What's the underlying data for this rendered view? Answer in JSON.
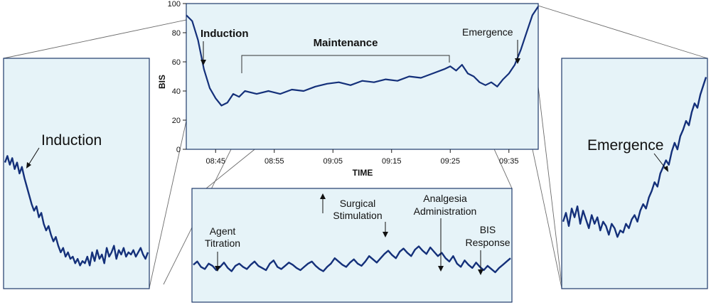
{
  "colors": {
    "panel_fill": "#e6f3f8",
    "panel_border": "#1f3a6b",
    "trace": "#14307a",
    "connector": "#6b6b6b",
    "axis": "#1a1a1a"
  },
  "chart_data": [
    {
      "id": "main",
      "type": "line",
      "ylabel": "BIS",
      "xlabel": "TIME",
      "ylim": [
        0,
        100
      ],
      "xlim": [
        "08:40",
        "09:40"
      ],
      "yticks": [
        "0",
        "20",
        "40",
        "60",
        "80",
        "100"
      ],
      "xticks": [
        "08:45",
        "08:55",
        "09:05",
        "09:15",
        "09:25",
        "09:35"
      ],
      "series": [
        {
          "x": [
            "08:40",
            "08:41",
            "08:42",
            "08:43",
            "08:44",
            "08:45",
            "08:46",
            "08:47",
            "08:48",
            "08:49",
            "08:50",
            "08:52",
            "08:54",
            "08:56",
            "08:58",
            "09:00",
            "09:02",
            "09:04",
            "09:06",
            "09:08",
            "09:10",
            "09:12",
            "09:14",
            "09:16",
            "09:18",
            "09:20",
            "09:22",
            "09:24",
            "09:25",
            "09:26",
            "09:27",
            "09:28",
            "09:29",
            "09:30",
            "09:31",
            "09:32",
            "09:33",
            "09:34",
            "09:35",
            "09:36",
            "09:37",
            "09:38",
            "09:39",
            "09:40"
          ],
          "values": [
            92,
            88,
            75,
            55,
            42,
            35,
            30,
            32,
            38,
            36,
            40,
            38,
            40,
            38,
            41,
            40,
            43,
            45,
            46,
            44,
            47,
            46,
            48,
            47,
            50,
            49,
            52,
            55,
            57,
            54,
            58,
            52,
            50,
            46,
            44,
            46,
            43,
            48,
            52,
            58,
            68,
            80,
            92,
            98
          ]
        }
      ],
      "annotations": [
        {
          "text": "Induction"
        },
        {
          "text": "Maintenance"
        },
        {
          "text": "Emergence"
        }
      ]
    },
    {
      "id": "induction-zoom",
      "type": "line",
      "series": [
        {
          "values": [
            55,
            58,
            54,
            57,
            52,
            55,
            50,
            53,
            48,
            44,
            40,
            36,
            33,
            35,
            30,
            32,
            27,
            24,
            26,
            22,
            19,
            21,
            17,
            14,
            16,
            12,
            14,
            11,
            12,
            9,
            11,
            8,
            10,
            9,
            12,
            8,
            14,
            10,
            15,
            11,
            13,
            9,
            16,
            12,
            14,
            17,
            11,
            15,
            13,
            16,
            12,
            14,
            13,
            15,
            12,
            14,
            16,
            13,
            11,
            14
          ]
        }
      ],
      "annotations": [
        {
          "text": "Induction"
        }
      ]
    },
    {
      "id": "maintenance-zoom",
      "type": "line",
      "series": [
        {
          "values": [
            32,
            35,
            30,
            28,
            33,
            31,
            27,
            30,
            34,
            29,
            26,
            31,
            33,
            30,
            28,
            32,
            35,
            31,
            29,
            27,
            33,
            36,
            30,
            28,
            31,
            34,
            32,
            29,
            27,
            30,
            33,
            35,
            31,
            28,
            26,
            30,
            33,
            38,
            35,
            32,
            30,
            34,
            37,
            33,
            31,
            35,
            40,
            37,
            34,
            38,
            42,
            45,
            41,
            38,
            44,
            47,
            43,
            40,
            46,
            49,
            45,
            42,
            48,
            44,
            40,
            43,
            38,
            35,
            40,
            33,
            30,
            36,
            32,
            29,
            34,
            30,
            27,
            31,
            28,
            25,
            29,
            32,
            35,
            38
          ]
        }
      ],
      "annotations": [
        {
          "text": "Agent\nTitration"
        },
        {
          "text": "Surgical\nStimulation"
        },
        {
          "text": "Analgesia\nAdministration"
        },
        {
          "text": "BIS\nResponse"
        }
      ]
    },
    {
      "id": "emergence-zoom",
      "type": "line",
      "series": [
        {
          "values": [
            28,
            32,
            26,
            34,
            30,
            35,
            27,
            33,
            29,
            25,
            31,
            27,
            30,
            24,
            28,
            26,
            22,
            27,
            25,
            21,
            24,
            23,
            27,
            25,
            29,
            31,
            28,
            33,
            36,
            34,
            39,
            42,
            46,
            44,
            50,
            53,
            56,
            54,
            60,
            64,
            61,
            67,
            70,
            74,
            72,
            78,
            82,
            80,
            86,
            90,
            94
          ]
        }
      ],
      "annotations": [
        {
          "text": "Emergence"
        }
      ]
    }
  ]
}
